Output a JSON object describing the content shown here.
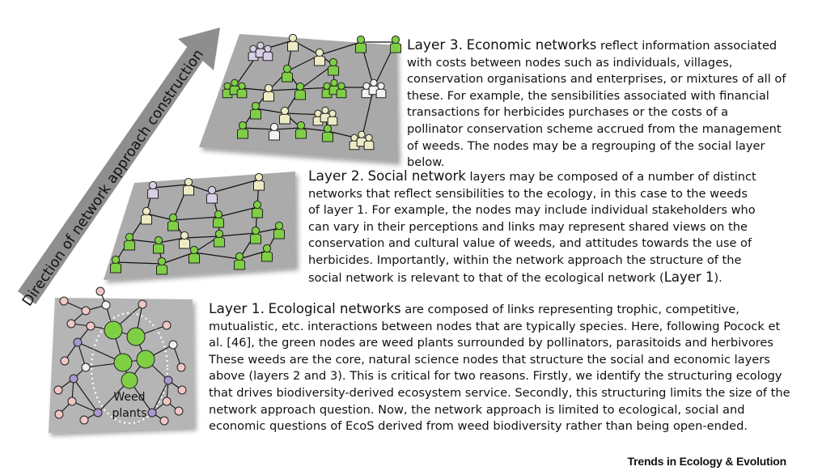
{
  "arrow_label": "Direction of network approach construction",
  "layers": [
    {
      "lead": "Layer 3.",
      "title": "Economic networks",
      "body": "reflect information associated with costs between nodes such as individuals, villages, conservation organisations and enterprises, or mixtures of all of these. For example, the sensibilities associated with financial transactions for herbicides purchases or the costs of a pollinator conservation scheme accrued from the management of weeds. The nodes may be a regrouping of the social layer below."
    },
    {
      "lead": "Layer 2.",
      "title": "Social network",
      "body": "layers may be composed of a number of distinct networks that reflect sensibilities to the ecology, in this case to the weeds of layer 1. For example, the nodes may include individual stakeholders who can vary in their perceptions and links may represent shared views on the conservation and cultural value of weeds, and attitudes towards the use of herbicides. Importantly, within the network approach the structure of the social network is relevant to that of the ecological network (",
      "ref": "Layer 1",
      "tail": ")."
    },
    {
      "lead": "Layer 1.",
      "title": "Ecological networks",
      "body": "are composed of links representing trophic, competitive, mutualistic, etc. interactions between nodes that are typically species. Here, following Pocock et al. [46], the green nodes are weed plants surrounded by pollinators, parasitoids and herbivores These weeds are the core, natural science nodes that structure the social and economic layers above (layers 2 and 3). This is critical for two reasons. Firstly, we identify the structuring ecology that drives biodiversity-derived ecosystem service. Secondly, this structuring limits the size of the network approach question. Now, the network approach is limited to ecological, social and economic questions of EcoS derived from weed biodiversity rather than being open-ended."
    }
  ],
  "weed_label_1": "Weed",
  "weed_label_2": "plants",
  "journal": "Trends in Ecology & Evolution",
  "colors": {
    "plane": "#a9a9a9",
    "green": "#7fcf45",
    "lavender": "#d8cfe6",
    "cream": "#ecebc4",
    "pink_node": "#efc7c3",
    "purple_node": "#a999cc",
    "white_node": "#f2f2f2",
    "arrow": "#8e8e8e"
  }
}
